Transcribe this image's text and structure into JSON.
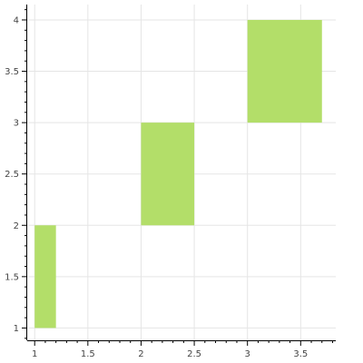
{
  "chart_data": {
    "type": "bar",
    "title": "",
    "xlabel": "",
    "ylabel": "",
    "xlim": [
      0.93,
      3.83
    ],
    "ylim": [
      0.88,
      4.15
    ],
    "grid": true,
    "colors": {
      "bar": "#b3de69",
      "grid": "#e5e5e5",
      "axis": "#000000",
      "label": "#444444"
    },
    "x_ticks": [
      1,
      1.5,
      2,
      2.5,
      3,
      3.5
    ],
    "x_tick_labels": [
      "1",
      "1.5",
      "2",
      "2.5",
      "3",
      "3.5"
    ],
    "y_ticks": [
      1,
      1.5,
      2,
      2.5,
      3,
      3.5,
      4
    ],
    "y_tick_labels": [
      "1",
      "1.5",
      "2",
      "2.5",
      "3",
      "3.5",
      "4"
    ],
    "bars": [
      {
        "x0": 1.0,
        "x1": 1.2,
        "y0": 1,
        "y1": 2
      },
      {
        "x0": 2.0,
        "x1": 2.5,
        "y0": 2,
        "y1": 3
      },
      {
        "x0": 3.0,
        "x1": 3.7,
        "y0": 3,
        "y1": 4
      }
    ]
  }
}
